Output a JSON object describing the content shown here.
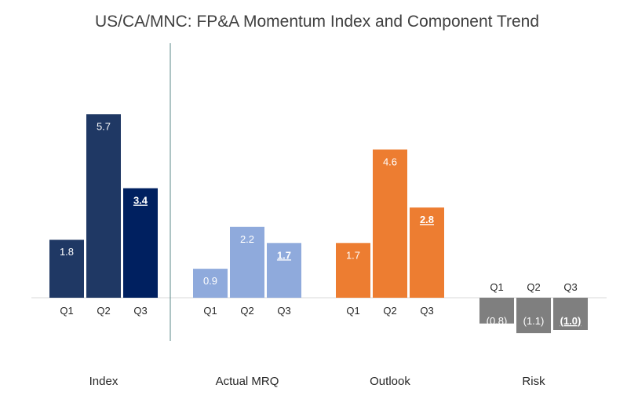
{
  "chart_data": {
    "type": "bar",
    "title": "US/CA/MNC: FP&A Momentum Index and Component Trend",
    "categories": [
      "Q1",
      "Q2",
      "Q3"
    ],
    "groups": [
      {
        "name": "Index",
        "color": "#1f3864",
        "highlight_color": "#002060",
        "values": [
          1.8,
          5.7,
          3.4
        ],
        "labels": [
          "1.8",
          "5.7",
          "3.4"
        ],
        "label_color": "#ffffff"
      },
      {
        "name": "Actual MRQ",
        "color": "#8faadc",
        "highlight_color": "#8faadc",
        "values": [
          0.9,
          2.2,
          1.7
        ],
        "labels": [
          "0.9",
          "2.2",
          "1.7"
        ],
        "label_color": "#ffffff"
      },
      {
        "name": "Outlook",
        "color": "#ed7d31",
        "highlight_color": "#ed7d31",
        "values": [
          1.7,
          4.6,
          2.8
        ],
        "labels": [
          "1.7",
          "4.6",
          "2.8"
        ],
        "label_color": "#ffffff"
      },
      {
        "name": "Risk",
        "color": "#7f7f7f",
        "highlight_color": "#7f7f7f",
        "values": [
          -0.8,
          -1.1,
          -1.0
        ],
        "labels": [
          "(0.8)",
          "(1.1)",
          "(1.0)"
        ],
        "label_color": "#ffffff"
      }
    ],
    "highlight_index": 2,
    "axis_line_color": "#d9d9d9",
    "separator_color": "#5b8a8a",
    "gridlines": false
  }
}
